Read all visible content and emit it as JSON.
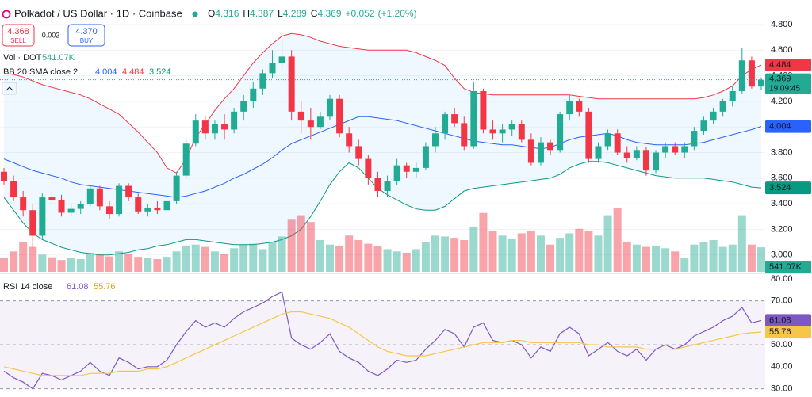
{
  "header": {
    "title": "Polkadot / US Dollar · 1D · Coinbase",
    "ohlc_labels": [
      "O",
      "H",
      "L",
      "C"
    ],
    "change": {
      "value": 0.052,
      "label": "+0.052"
    },
    "change_percent": {
      "value": 1.2,
      "label": "(+1.20%)"
    },
    "sell": {
      "value": 4.368,
      "label": "4.368"
    },
    "sell_label": "SELL",
    "spread": 0.002,
    "buy": {
      "value": 4.37,
      "label": "4.370"
    },
    "buy_label": "BUY",
    "countdown": "19:09:45"
  },
  "chart_data": [
    {
      "type": "candlestick",
      "up_color": "#22ab94",
      "down_color": "#f23645",
      "open": [
        3.65,
        3.58,
        3.45,
        3.35,
        3.15,
        3.45,
        3.43,
        3.33,
        3.36,
        3.4,
        3.52,
        3.38,
        3.32,
        3.54,
        3.45,
        3.34,
        3.37,
        3.35,
        3.42,
        3.62,
        3.87,
        4.05,
        3.95,
        4.02,
        3.98,
        4.12,
        4.2,
        4.3,
        4.42,
        4.5,
        4.55,
        4.12,
        4.05,
        4.0,
        4.08,
        4.22,
        3.95,
        3.85,
        3.75,
        3.6,
        3.5,
        3.58,
        3.7,
        3.65,
        3.68,
        3.85,
        3.95,
        4.1,
        4.03,
        3.85,
        4.28,
        3.98,
        3.95,
        3.98,
        4.02,
        3.9,
        3.72,
        3.88,
        3.82,
        4.1,
        4.2,
        4.12,
        3.75,
        3.85,
        3.95,
        3.8,
        3.76,
        3.82,
        3.66,
        3.8,
        3.85,
        3.8,
        3.85,
        3.97,
        4.05,
        4.12,
        4.2,
        4.28,
        4.52,
        4.316
      ],
      "high": [
        3.68,
        3.62,
        3.5,
        3.4,
        3.48,
        3.5,
        3.47,
        3.4,
        3.42,
        3.55,
        3.54,
        3.42,
        3.56,
        3.56,
        3.48,
        3.4,
        3.42,
        3.45,
        3.65,
        3.9,
        4.1,
        4.08,
        4.05,
        4.1,
        4.15,
        4.25,
        4.35,
        4.45,
        4.6,
        4.68,
        4.6,
        4.2,
        4.15,
        4.12,
        4.25,
        4.25,
        4.0,
        3.9,
        3.78,
        3.65,
        3.62,
        3.75,
        3.72,
        3.72,
        3.88,
        4.0,
        4.12,
        4.15,
        4.08,
        4.35,
        4.3,
        4.05,
        4.02,
        4.05,
        4.05,
        3.95,
        3.92,
        3.9,
        4.12,
        4.25,
        4.22,
        4.15,
        3.88,
        3.98,
        3.98,
        3.85,
        3.85,
        3.84,
        3.82,
        3.88,
        3.88,
        3.88,
        4.0,
        4.08,
        4.15,
        4.22,
        4.32,
        4.62,
        4.55,
        4.387
      ],
      "low": [
        3.55,
        3.42,
        3.3,
        3.05,
        3.12,
        3.4,
        3.3,
        3.3,
        3.32,
        3.38,
        3.35,
        3.28,
        3.3,
        3.42,
        3.32,
        3.3,
        3.32,
        3.32,
        3.4,
        3.6,
        3.85,
        3.9,
        3.9,
        3.9,
        3.95,
        4.05,
        4.15,
        4.25,
        4.38,
        4.45,
        4.05,
        3.95,
        3.9,
        3.98,
        4.05,
        3.92,
        3.8,
        3.7,
        3.55,
        3.45,
        3.45,
        3.55,
        3.6,
        3.6,
        3.66,
        3.8,
        3.9,
        4.0,
        3.82,
        3.83,
        3.95,
        3.9,
        3.88,
        3.93,
        3.88,
        3.7,
        3.7,
        3.78,
        3.8,
        4.05,
        4.08,
        3.72,
        3.72,
        3.82,
        3.78,
        3.72,
        3.74,
        3.62,
        3.64,
        3.76,
        3.78,
        3.76,
        3.82,
        3.94,
        4.02,
        4.08,
        4.16,
        4.26,
        4.3,
        4.289
      ],
      "close": [
        3.58,
        3.45,
        3.35,
        3.15,
        3.45,
        3.43,
        3.33,
        3.36,
        3.4,
        3.52,
        3.38,
        3.32,
        3.54,
        3.45,
        3.34,
        3.37,
        3.35,
        3.42,
        3.62,
        3.87,
        4.05,
        3.95,
        4.02,
        3.98,
        4.12,
        4.2,
        4.3,
        4.42,
        4.5,
        4.55,
        4.12,
        4.05,
        4.0,
        4.08,
        4.22,
        3.95,
        3.85,
        3.75,
        3.6,
        3.5,
        3.58,
        3.7,
        3.65,
        3.68,
        3.85,
        3.95,
        4.1,
        4.03,
        3.85,
        4.28,
        3.98,
        3.95,
        3.98,
        4.02,
        3.9,
        3.72,
        3.88,
        3.82,
        4.1,
        4.2,
        4.12,
        3.75,
        3.85,
        3.95,
        3.8,
        3.76,
        3.82,
        3.66,
        3.8,
        3.85,
        3.8,
        3.85,
        3.97,
        4.05,
        4.12,
        4.2,
        4.28,
        4.52,
        4.316,
        4.369
      ],
      "volume": {
        "name": "Vol · DOT",
        "values": [
          300,
          450,
          650,
          550,
          380,
          320,
          260,
          300,
          280,
          420,
          380,
          340,
          450,
          400,
          330,
          300,
          280,
          330,
          450,
          580,
          600,
          550,
          450,
          400,
          520,
          600,
          620,
          500,
          650,
          780,
          1150,
          1250,
          1100,
          700,
          600,
          580,
          800,
          700,
          620,
          560,
          500,
          450,
          420,
          500,
          650,
          800,
          780,
          750,
          700,
          1000,
          1300,
          900,
          800,
          720,
          850,
          900,
          800,
          600,
          750,
          850,
          950,
          900,
          800,
          1250,
          1400,
          650,
          600,
          550,
          580,
          520,
          450,
          300,
          600,
          650,
          700,
          550,
          600,
          1250,
          600,
          541.07
        ],
        "value_labels": [
          null,
          null,
          null,
          null,
          null,
          null,
          null,
          null,
          null,
          null,
          null,
          null,
          null,
          null,
          null,
          null,
          null,
          null,
          null,
          null,
          null,
          null,
          null,
          null,
          null,
          null,
          null,
          null,
          null,
          null,
          null,
          null,
          null,
          null,
          null,
          null,
          null,
          null,
          null,
          null,
          null,
          null,
          null,
          null,
          null,
          null,
          null,
          null,
          null,
          null,
          null,
          null,
          null,
          null,
          null,
          null,
          null,
          null,
          null,
          null,
          null,
          null,
          null,
          null,
          null,
          null,
          null,
          null,
          null,
          null,
          null,
          null,
          null,
          null,
          null,
          null,
          null,
          null,
          null,
          "541.07K"
        ]
      },
      "bollinger": {
        "name": "BB 20 SMA close 2",
        "basis": {
          "color": "#2962ff",
          "values": [
            3.75,
            3.72,
            3.69,
            3.66,
            3.64,
            3.62,
            3.6,
            3.57,
            3.55,
            3.54,
            3.53,
            3.52,
            3.51,
            3.5,
            3.49,
            3.48,
            3.47,
            3.46,
            3.45,
            3.46,
            3.48,
            3.5,
            3.53,
            3.56,
            3.6,
            3.63,
            3.67,
            3.71,
            3.76,
            3.82,
            3.87,
            3.9,
            3.93,
            3.96,
            3.99,
            4.02,
            4.05,
            4.08,
            4.08,
            4.07,
            4.06,
            4.05,
            4.03,
            4.01,
            3.99,
            3.97,
            3.95,
            3.93,
            3.91,
            3.89,
            3.88,
            3.87,
            3.86,
            3.86,
            3.85,
            3.84,
            3.83,
            3.84,
            3.87,
            3.9,
            3.92,
            3.93,
            3.94,
            3.95,
            3.93,
            3.9,
            3.88,
            3.87,
            3.86,
            3.86,
            3.86,
            3.86,
            3.87,
            3.88,
            3.9,
            3.92,
            3.94,
            3.96,
            3.98,
            4.004
          ]
        },
        "upper": {
          "color": "#f23645",
          "values": [
            4.42,
            4.41,
            4.39,
            4.36,
            4.33,
            4.31,
            4.29,
            4.27,
            4.25,
            4.22,
            4.18,
            4.14,
            4.1,
            4.03,
            3.96,
            3.88,
            3.8,
            3.68,
            3.64,
            3.75,
            3.92,
            4.02,
            4.13,
            4.22,
            4.3,
            4.4,
            4.5,
            4.58,
            4.65,
            4.71,
            4.73,
            4.72,
            4.7,
            4.67,
            4.65,
            4.63,
            4.62,
            4.61,
            4.6,
            4.6,
            4.6,
            4.6,
            4.6,
            4.58,
            4.55,
            4.52,
            4.48,
            4.38,
            4.3,
            4.27,
            4.26,
            4.25,
            4.25,
            4.25,
            4.25,
            4.25,
            4.25,
            4.25,
            4.25,
            4.25,
            4.24,
            4.23,
            4.22,
            4.22,
            4.22,
            4.22,
            4.22,
            4.22,
            4.22,
            4.22,
            4.22,
            4.22,
            4.22,
            4.23,
            4.25,
            4.28,
            4.32,
            4.4,
            4.45,
            4.484
          ]
        },
        "lower": {
          "color": "#089981",
          "values": [
            3.45,
            3.35,
            3.25,
            3.17,
            3.12,
            3.09,
            3.06,
            3.04,
            3.02,
            3.01,
            3.0,
            3.0,
            3.01,
            3.02,
            3.04,
            3.05,
            3.07,
            3.08,
            3.1,
            3.12,
            3.12,
            3.11,
            3.1,
            3.09,
            3.08,
            3.08,
            3.08,
            3.09,
            3.1,
            3.12,
            3.15,
            3.2,
            3.3,
            3.42,
            3.55,
            3.65,
            3.72,
            3.68,
            3.6,
            3.52,
            3.47,
            3.43,
            3.39,
            3.36,
            3.35,
            3.35,
            3.38,
            3.44,
            3.5,
            3.52,
            3.53,
            3.54,
            3.55,
            3.56,
            3.57,
            3.58,
            3.59,
            3.6,
            3.63,
            3.68,
            3.71,
            3.73,
            3.73,
            3.72,
            3.7,
            3.68,
            3.66,
            3.64,
            3.62,
            3.61,
            3.6,
            3.6,
            3.6,
            3.6,
            3.59,
            3.58,
            3.57,
            3.55,
            3.53,
            3.524
          ]
        }
      },
      "ylim": [
        2.856,
        4.992
      ],
      "yticks": [
        {
          "value": 4.8,
          "label": "4.800"
        },
        {
          "value": 4.6,
          "label": "4.600"
        },
        {
          "value": 4.4,
          "label": "4.400"
        },
        {
          "value": 4.2,
          "label": "4.200"
        },
        {
          "value": 4.0,
          "label": "4.000"
        },
        {
          "value": 3.8,
          "label": "3.800"
        },
        {
          "value": 3.6,
          "label": "3.600"
        },
        {
          "value": 3.4,
          "label": "3.400"
        },
        {
          "value": 3.2,
          "label": "3.200"
        },
        {
          "value": 3.0,
          "label": "3.000"
        }
      ]
    },
    {
      "type": "line",
      "title": "RSI 14 close",
      "series": [
        {
          "color": "#7e57c2",
          "values": [
            38,
            35,
            33,
            30,
            37,
            36,
            34,
            36,
            38,
            42,
            38,
            36,
            44,
            42,
            39,
            40,
            40,
            43,
            50,
            56,
            61,
            58,
            60,
            58,
            62,
            65,
            67,
            69,
            72,
            74,
            53,
            50,
            48,
            51,
            55,
            47,
            44,
            42,
            38,
            36,
            39,
            43,
            42,
            43,
            48,
            52,
            57,
            55,
            49,
            58,
            60,
            52,
            51,
            52,
            50,
            44,
            49,
            47,
            55,
            58,
            55,
            45,
            48,
            51,
            47,
            45,
            48,
            43,
            48,
            50,
            48,
            50,
            54,
            56,
            58,
            61,
            63,
            67,
            60,
            61.08
          ]
        },
        {
          "color": "#f7c548",
          "values": [
            40,
            39,
            38,
            37,
            36,
            36,
            36,
            36,
            36,
            37,
            37,
            37,
            38,
            38,
            38,
            39,
            39,
            40,
            42,
            44,
            46,
            48,
            50,
            52,
            54,
            56,
            58,
            60,
            62,
            64,
            65,
            65,
            64,
            63,
            62,
            60,
            58,
            55,
            52,
            49,
            47,
            46,
            45,
            45,
            45,
            46,
            47,
            48,
            49,
            50,
            51,
            51,
            51,
            52,
            52,
            51,
            51,
            51,
            51,
            51,
            51,
            50,
            50,
            49,
            49,
            49,
            49,
            48,
            48,
            48,
            48,
            49,
            50,
            51,
            52,
            53,
            54,
            55,
            55.5,
            55.76
          ]
        }
      ],
      "levels": [
        70,
        50,
        30
      ],
      "ylim": [
        28.4,
        82.5
      ],
      "yticks": [
        {
          "value": 80,
          "label": "80.00"
        },
        {
          "value": 70,
          "label": "70.00"
        },
        {
          "value": 60,
          "label": "60.00"
        },
        {
          "value": 50,
          "label": "50.00"
        },
        {
          "value": 40,
          "label": "40.00"
        },
        {
          "value": 30,
          "label": "30.00"
        }
      ]
    }
  ]
}
